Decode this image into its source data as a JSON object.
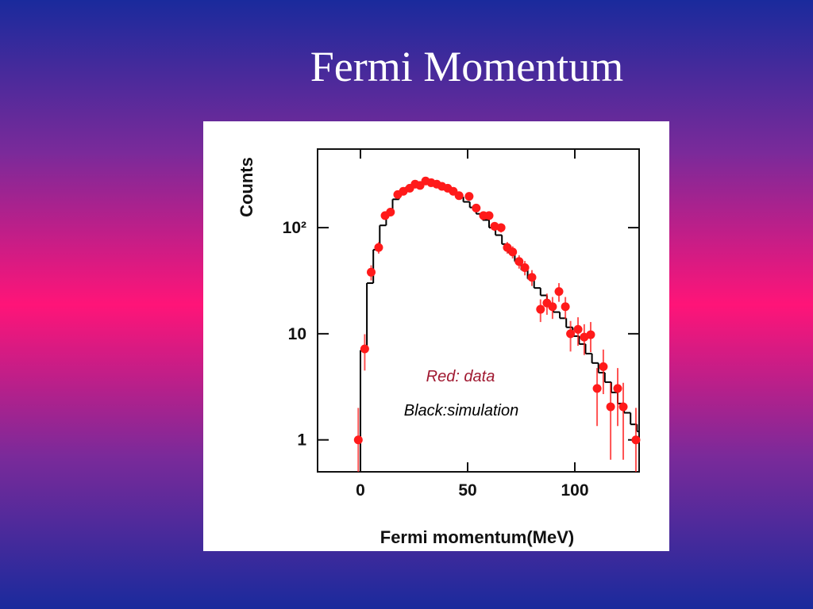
{
  "chart_data": {
    "type": "scatter",
    "title": "Fermi Momentum",
    "x_label": "Fermi momentum(MeV)",
    "y_label": "Counts",
    "xlim": [
      -20,
      130
    ],
    "xticks": [
      0,
      50,
      100
    ],
    "ylim": [
      0.5,
      550
    ],
    "yticks": [
      1,
      10,
      {
        "value": 100,
        "label": "10²"
      }
    ],
    "y_scale": "log",
    "series": [
      {
        "name": "Red: data",
        "color": "#ff1a1a",
        "style": "points",
        "x": [
          -1,
          2,
          5,
          8.5,
          11.5,
          14,
          17.4,
          20,
          23,
          25.5,
          27.8,
          30.4,
          33,
          35.6,
          38,
          40.7,
          43.3,
          46,
          50.7,
          54,
          57.4,
          60,
          62.6,
          65.6,
          68.5,
          71,
          74,
          76.7,
          80,
          84,
          87,
          89.6,
          92.6,
          95.6,
          98,
          101.5,
          104.4,
          107.4,
          110.4,
          113.3,
          116.7,
          120,
          122.6,
          128.5
        ],
        "values": [
          1,
          7.2,
          38,
          65,
          130,
          140,
          205,
          220,
          235,
          257,
          250,
          275,
          265,
          257,
          245,
          235,
          220,
          200,
          197,
          153,
          130,
          130,
          103,
          100,
          65,
          59,
          48,
          42,
          34,
          17,
          19.5,
          18,
          25,
          18,
          10,
          11,
          9.3,
          9.8,
          3.05,
          4.9,
          2.05,
          3.05,
          2.05,
          1
        ],
        "errors": [
          1,
          2.7,
          6.2,
          8.1,
          11.4,
          11.8,
          14.3,
          14.8,
          15.3,
          16,
          15.8,
          16.6,
          16.3,
          16,
          15.7,
          15.3,
          14.8,
          14.1,
          14,
          12.4,
          11.4,
          11.4,
          10.1,
          10,
          8.1,
          7.7,
          6.9,
          6.5,
          5.8,
          4.1,
          4.4,
          4.2,
          5,
          4.2,
          3.2,
          3.3,
          3,
          3.1,
          1.7,
          2.2,
          1.4,
          1.7,
          1.4,
          1
        ]
      },
      {
        "name": "Black:simulation",
        "color": "#000000",
        "style": "step",
        "x": [
          0,
          3,
          6,
          9,
          12,
          15,
          18,
          21,
          24,
          27,
          30,
          33,
          36,
          39,
          42,
          45,
          48,
          51,
          54,
          57,
          60,
          63,
          66,
          69,
          72,
          75,
          78,
          81,
          84,
          87,
          90,
          93,
          96,
          99,
          102,
          105,
          108,
          111,
          114,
          117,
          120,
          123,
          126,
          129
        ],
        "values": [
          7,
          30,
          62,
          105,
          140,
          185,
          215,
          240,
          255,
          265,
          270,
          262,
          250,
          235,
          215,
          195,
          175,
          155,
          135,
          118,
          100,
          85,
          70,
          58,
          48,
          40,
          33,
          27,
          23,
          19,
          16,
          14,
          11.5,
          9.5,
          8,
          6.5,
          5.3,
          4.3,
          3.5,
          2.8,
          2.2,
          1.8,
          1.4,
          1.2
        ]
      }
    ]
  }
}
